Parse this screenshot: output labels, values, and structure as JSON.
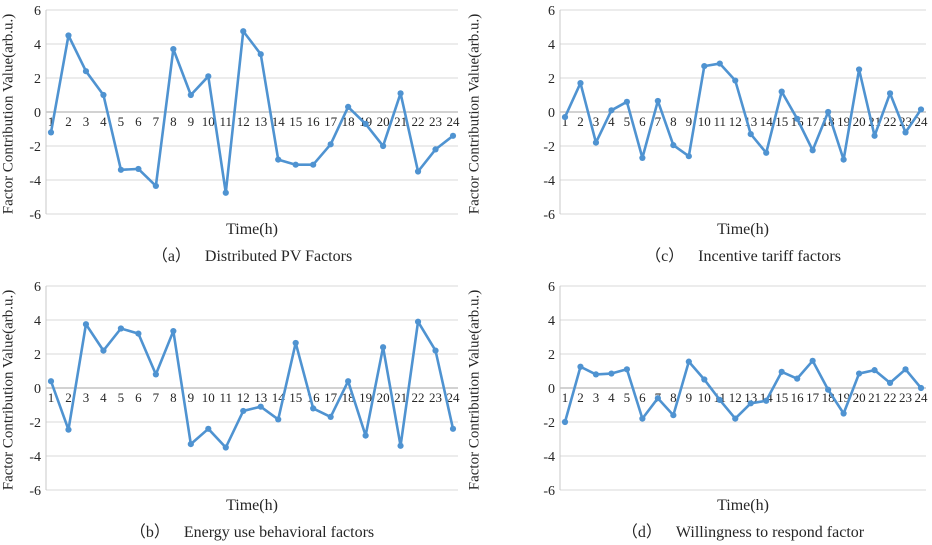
{
  "figure": {
    "y_axis_title": "Factor Contribution Value(arb.u.)",
    "x_axis_title": "Time(h)"
  },
  "colors": {
    "line": "#4f93d1",
    "grid": "#d9d9d9",
    "zero_axis": "#a6a6a6",
    "axis_line": "#c8c8c8",
    "text": "#262626"
  },
  "chart_data": [
    {
      "type": "line",
      "panel": "a",
      "caption_prefix": "（a）",
      "caption": "Distributed PV Factors",
      "xlabel": "Time(h)",
      "ylabel": "Factor Contribution Value(arb.u.)",
      "ylim": [
        -6,
        6
      ],
      "yticks": [
        6,
        4,
        2,
        0,
        -2,
        -4,
        -6
      ],
      "grid": true,
      "legend": false,
      "x": [
        1,
        2,
        3,
        4,
        5,
        6,
        7,
        8,
        9,
        10,
        11,
        12,
        13,
        14,
        15,
        16,
        17,
        18,
        19,
        20,
        21,
        22,
        23,
        24
      ],
      "values": [
        -1.2,
        4.5,
        2.4,
        1.0,
        -3.4,
        -3.35,
        -4.35,
        3.7,
        1.0,
        2.1,
        -4.75,
        4.75,
        3.4,
        -2.8,
        -3.1,
        -3.1,
        -1.9,
        0.3,
        -0.7,
        -2.0,
        1.1,
        -3.5,
        -2.2,
        -1.4
      ]
    },
    {
      "type": "line",
      "panel": "c",
      "caption_prefix": "（c）",
      "caption": "Incentive tariff factors",
      "xlabel": "Time(h)",
      "ylabel": "Factor Contribution Value(arb.u.)",
      "ylim": [
        -6,
        6
      ],
      "yticks": [
        6,
        4,
        2,
        0,
        -2,
        -4,
        -6
      ],
      "grid": true,
      "legend": false,
      "x": [
        1,
        2,
        3,
        4,
        5,
        6,
        7,
        8,
        9,
        10,
        11,
        12,
        13,
        14,
        15,
        16,
        17,
        18,
        19,
        20,
        21,
        22,
        23,
        24
      ],
      "values": [
        -0.3,
        1.7,
        -1.8,
        0.1,
        0.6,
        -2.7,
        0.65,
        -1.95,
        -2.6,
        2.7,
        2.85,
        1.85,
        -1.3,
        -2.4,
        1.2,
        -0.4,
        -2.25,
        0.0,
        -2.8,
        2.5,
        -1.4,
        1.1,
        -1.2,
        0.15
      ]
    },
    {
      "type": "line",
      "panel": "b",
      "caption_prefix": "（b）",
      "caption": "Energy use behavioral factors",
      "xlabel": "Time(h)",
      "ylabel": "Factor Contribution Value(arb.u.)",
      "ylim": [
        -6,
        6
      ],
      "yticks": [
        6,
        4,
        2,
        0,
        -2,
        -4,
        -6
      ],
      "grid": true,
      "legend": false,
      "x": [
        1,
        2,
        3,
        4,
        5,
        6,
        7,
        8,
        9,
        10,
        11,
        12,
        13,
        14,
        15,
        16,
        17,
        18,
        19,
        20,
        21,
        22,
        23,
        24
      ],
      "values": [
        0.4,
        -2.45,
        3.75,
        2.2,
        3.5,
        3.2,
        0.8,
        3.35,
        -3.3,
        -2.4,
        -3.5,
        -1.35,
        -1.1,
        -1.85,
        2.65,
        -1.2,
        -1.7,
        0.4,
        -2.8,
        2.4,
        -3.4,
        3.9,
        2.2,
        -2.4
      ]
    },
    {
      "type": "line",
      "panel": "d",
      "caption_prefix": "（d）",
      "caption": "Willingness to respond factor",
      "xlabel": "Time(h)",
      "ylabel": "Factor Contribution Value(arb.u.)",
      "ylim": [
        -6,
        6
      ],
      "yticks": [
        6,
        4,
        2,
        0,
        -2,
        -4,
        -6
      ],
      "grid": true,
      "legend": false,
      "x": [
        1,
        2,
        3,
        4,
        5,
        6,
        7,
        8,
        9,
        10,
        11,
        12,
        13,
        14,
        15,
        16,
        17,
        18,
        19,
        20,
        21,
        22,
        23,
        24
      ],
      "values": [
        -2.0,
        1.25,
        0.8,
        0.85,
        1.1,
        -1.8,
        -0.6,
        -1.6,
        1.55,
        0.5,
        -0.7,
        -1.8,
        -0.9,
        -0.75,
        0.95,
        0.55,
        1.6,
        -0.1,
        -1.5,
        0.85,
        1.05,
        0.3,
        1.1,
        0.0
      ]
    }
  ]
}
